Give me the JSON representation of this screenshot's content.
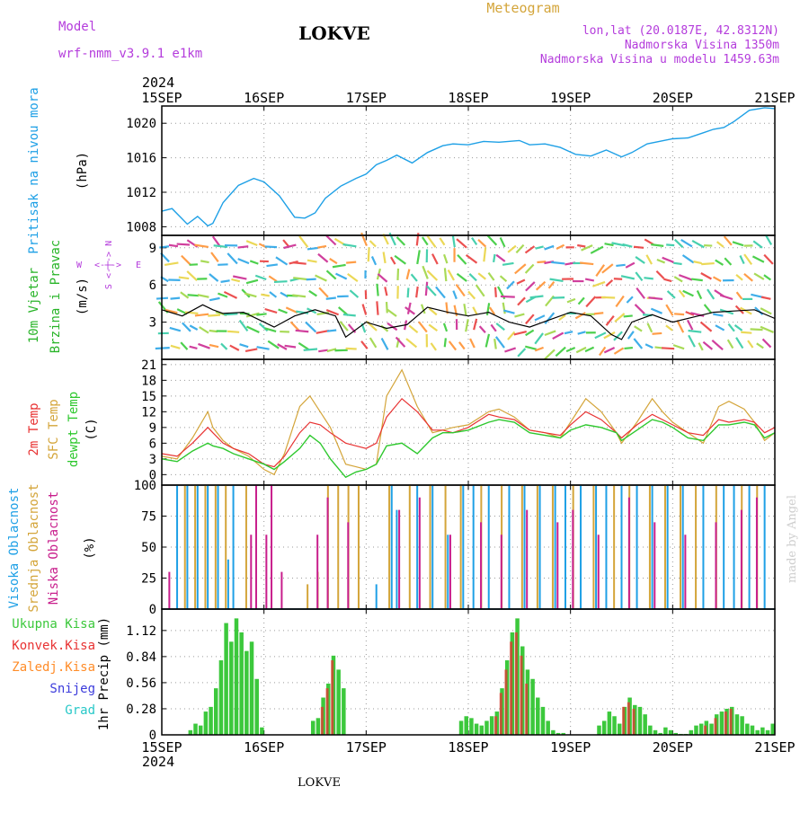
{
  "header": {
    "model_label": "Model",
    "model_name": "wrf-nmm_v3.9.1  e1km",
    "station": "LOKVE",
    "product": "Meteogram",
    "coords": "lon,lat (20.0187E, 42.8312N)",
    "altitude": "Nadmorska Visina 1350m",
    "model_altitude": "Nadmorska Visina u modelu 1459.63m",
    "footer_station": "LOKVE",
    "watermark": "made by Angel",
    "year": "2024"
  },
  "axis": {
    "day_labels": [
      "15SEP",
      "16SEP",
      "17SEP",
      "18SEP",
      "19SEP",
      "20SEP",
      "21SEP"
    ]
  },
  "colors": {
    "pressure": "#1ea0e6",
    "temp2m": "#e83232",
    "sfc_temp": "#d4a53a",
    "dewpoint": "#2ec82e",
    "high_cloud": "#1ea0e6",
    "mid_cloud": "#d4a53a",
    "low_cloud": "#c81e8c",
    "total_precip": "#3cc83c",
    "conv_precip": "#e83232",
    "frozen_precip": "#ff8c28",
    "snow": "#3c3cdc",
    "hail": "#28c8c8",
    "wind_label": "#28b428",
    "wind_compass": "#b43cdc"
  },
  "chart_data": [
    {
      "type": "line",
      "panel": "pressure",
      "ylabel_parts": [
        "Pritisak na nivou mora",
        "(hPa)"
      ],
      "yticks": [
        "1008",
        "1012",
        "1016",
        "1020"
      ],
      "ylim": [
        1007,
        1022
      ],
      "x_unit": "days from 15SEP 00UTC",
      "grid": true,
      "series": [
        {
          "x": [
            0,
            0.1,
            0.25,
            0.35,
            0.45,
            0.5,
            0.6,
            0.75,
            0.9,
            1.0,
            1.15,
            1.3,
            1.4,
            1.5,
            1.6,
            1.75,
            1.9,
            2.0,
            2.1,
            2.2,
            2.3,
            2.45,
            2.6,
            2.75,
            2.85,
            3.0,
            3.15,
            3.3,
            3.5,
            3.6,
            3.75,
            3.9,
            4.05,
            4.2,
            4.35,
            4.5,
            4.6,
            4.75,
            5.0,
            5.15,
            5.3,
            5.4,
            5.5,
            5.6,
            5.75,
            5.9,
            6.0
          ],
          "values": [
            1009.8,
            1010.1,
            1008.3,
            1009.2,
            1008.1,
            1008.4,
            1010.8,
            1012.8,
            1013.6,
            1013.2,
            1011.6,
            1009.1,
            1009.0,
            1009.6,
            1011.3,
            1012.7,
            1013.6,
            1014.1,
            1015.2,
            1015.7,
            1016.3,
            1015.4,
            1016.6,
            1017.4,
            1017.6,
            1017.5,
            1017.9,
            1017.8,
            1018.0,
            1017.5,
            1017.6,
            1017.2,
            1016.4,
            1016.2,
            1016.9,
            1016.1,
            1016.6,
            1017.6,
            1018.2,
            1018.3,
            1018.9,
            1019.3,
            1019.5,
            1020.2,
            1021.5,
            1021.8,
            1021.7
          ]
        }
      ]
    },
    {
      "type": "line",
      "panel": "wind",
      "ylabel_parts": [
        "10m Vjetar",
        "Brzina i Pravac",
        "(m/s)"
      ],
      "compass": [
        "W",
        "<-|->",
        "E",
        "S",
        "N"
      ],
      "yticks": [
        "3",
        "6",
        "9"
      ],
      "ylim": [
        0,
        10
      ],
      "x_unit": "days from 15SEP 00UTC",
      "grid": true,
      "series": [
        {
          "x": [
            0,
            0.2,
            0.4,
            0.5,
            0.6,
            0.8,
            1.0,
            1.1,
            1.3,
            1.5,
            1.7,
            1.8,
            2.0,
            2.2,
            2.4,
            2.6,
            2.8,
            3.0,
            3.2,
            3.4,
            3.6,
            3.8,
            4.0,
            4.2,
            4.4,
            4.5,
            4.6,
            4.8,
            5.0,
            5.2,
            5.4,
            5.6,
            5.8,
            6.0
          ],
          "values": [
            4.0,
            3.5,
            4.4,
            4.0,
            3.7,
            3.8,
            3.0,
            2.6,
            3.5,
            4.0,
            3.5,
            1.8,
            3.0,
            2.5,
            2.8,
            4.2,
            3.8,
            3.5,
            3.8,
            3.0,
            2.6,
            3.2,
            3.8,
            3.5,
            2.0,
            1.6,
            3.0,
            3.6,
            3.0,
            3.4,
            3.8,
            3.9,
            4.0,
            3.3
          ]
        }
      ]
    },
    {
      "type": "line",
      "panel": "temperature",
      "ylabel_parts": [
        "2m Temp",
        "SFC Temp",
        "dewpt Temp",
        "(C)"
      ],
      "yticks": [
        "0",
        "3",
        "6",
        "9",
        "12",
        "15",
        "18",
        "21"
      ],
      "ylim": [
        -2,
        22
      ],
      "x_unit": "days from 15SEP 00UTC",
      "grid": true,
      "series": [
        {
          "name": "2m Temp",
          "x": [
            0,
            0.15,
            0.3,
            0.45,
            0.5,
            0.6,
            0.7,
            0.85,
            1.0,
            1.1,
            1.2,
            1.35,
            1.45,
            1.55,
            1.65,
            1.8,
            1.9,
            2.0,
            2.1,
            2.2,
            2.35,
            2.5,
            2.65,
            2.75,
            2.85,
            3.0,
            3.2,
            3.3,
            3.45,
            3.6,
            3.75,
            3.9,
            4.0,
            4.15,
            4.3,
            4.45,
            4.5,
            4.65,
            4.8,
            4.9,
            5.0,
            5.15,
            5.3,
            5.45,
            5.55,
            5.7,
            5.8,
            5.9,
            6.0
          ],
          "values": [
            4.0,
            3.5,
            6.0,
            9.0,
            8.0,
            6.0,
            5.0,
            4.0,
            2.0,
            1.5,
            3.5,
            8.0,
            10.0,
            9.5,
            8.0,
            6.0,
            5.5,
            5.0,
            6.0,
            11.0,
            14.5,
            12.0,
            8.5,
            8.5,
            8.0,
            9.0,
            11.5,
            11.0,
            10.5,
            8.5,
            8.0,
            7.5,
            9.5,
            12.0,
            10.5,
            8.0,
            7.0,
            9.5,
            11.5,
            10.5,
            9.5,
            8.0,
            7.5,
            10.5,
            10.0,
            10.5,
            10.0,
            8.0,
            9.0
          ]
        },
        {
          "name": "SFC Temp",
          "x": [
            0,
            0.15,
            0.3,
            0.45,
            0.5,
            0.6,
            0.7,
            0.85,
            1.0,
            1.1,
            1.2,
            1.35,
            1.45,
            1.55,
            1.65,
            1.8,
            1.9,
            2.0,
            2.1,
            2.2,
            2.35,
            2.5,
            2.65,
            2.75,
            2.85,
            3.0,
            3.2,
            3.3,
            3.45,
            3.6,
            3.75,
            3.9,
            4.0,
            4.15,
            4.3,
            4.45,
            4.5,
            4.65,
            4.8,
            4.9,
            5.0,
            5.15,
            5.3,
            5.45,
            5.55,
            5.7,
            5.8,
            5.9,
            6.0
          ],
          "values": [
            3.5,
            3.0,
            7.0,
            12.0,
            9.0,
            6.5,
            5.0,
            3.5,
            1.0,
            0.0,
            4.0,
            13.0,
            15.0,
            12.0,
            9.0,
            2.0,
            1.5,
            1.0,
            2.0,
            15.0,
            20.0,
            13.0,
            8.0,
            8.5,
            9.0,
            9.5,
            12.0,
            12.5,
            11.0,
            8.5,
            8.0,
            7.0,
            10.0,
            14.5,
            12.0,
            8.0,
            6.0,
            10.0,
            14.5,
            12.0,
            10.0,
            8.0,
            6.0,
            13.0,
            14.0,
            12.5,
            10.0,
            6.5,
            8.0
          ]
        },
        {
          "name": "dewpt Temp",
          "x": [
            0,
            0.15,
            0.3,
            0.45,
            0.5,
            0.6,
            0.7,
            0.85,
            1.0,
            1.1,
            1.2,
            1.35,
            1.45,
            1.55,
            1.65,
            1.8,
            1.9,
            2.0,
            2.1,
            2.2,
            2.35,
            2.5,
            2.65,
            2.75,
            2.85,
            3.0,
            3.2,
            3.3,
            3.45,
            3.6,
            3.75,
            3.9,
            4.0,
            4.15,
            4.3,
            4.45,
            4.5,
            4.65,
            4.8,
            4.9,
            5.0,
            5.15,
            5.3,
            5.45,
            5.55,
            5.7,
            5.8,
            5.9,
            6.0
          ],
          "values": [
            3.0,
            2.5,
            4.5,
            6.0,
            5.5,
            5.0,
            4.0,
            3.0,
            2.0,
            1.0,
            2.5,
            5.0,
            7.5,
            6.0,
            3.0,
            -0.5,
            0.5,
            1.0,
            2.0,
            5.5,
            6.0,
            4.0,
            7.0,
            8.0,
            8.0,
            8.5,
            10.0,
            10.5,
            10.0,
            8.0,
            7.5,
            7.0,
            8.5,
            9.5,
            9.0,
            8.0,
            6.5,
            8.5,
            10.5,
            10.0,
            9.0,
            7.0,
            6.5,
            9.5,
            9.5,
            10.0,
            9.5,
            7.0,
            8.0
          ]
        }
      ]
    },
    {
      "type": "bar",
      "panel": "cloud",
      "ylabel_parts": [
        "Visoka Oblacnost",
        "Srednja Oblacnost",
        "Niska Oblacnost",
        "(%)"
      ],
      "yticks": [
        "0",
        "25",
        "50",
        "75",
        "100"
      ],
      "ylim": [
        0,
        100
      ],
      "x_unit": "days from 15SEP 00UTC",
      "grid": true,
      "series": [
        {
          "name": "Visoka Oblacnost",
          "x": [
            0.15,
            0.25,
            0.35,
            0.45,
            0.55,
            0.65,
            0.7,
            2.1,
            2.25,
            2.3,
            2.5,
            2.65,
            2.8,
            2.95,
            3.05,
            3.2,
            3.4,
            3.55,
            3.7,
            3.85,
            3.95,
            4.1,
            4.25,
            4.35,
            4.5,
            4.65,
            4.8,
            4.95,
            5.1,
            5.3,
            5.5,
            5.6,
            5.75,
            5.9
          ],
          "values": [
            100,
            100,
            100,
            100,
            100,
            40,
            100,
            20,
            100,
            80,
            100,
            100,
            60,
            100,
            100,
            100,
            100,
            100,
            100,
            100,
            100,
            100,
            100,
            100,
            100,
            100,
            100,
            100,
            100,
            100,
            100,
            100,
            100,
            100
          ]
        },
        {
          "name": "Srednja Oblacnost",
          "x": [
            0.2,
            0.3,
            0.4,
            0.5,
            0.6,
            0.8,
            1.4,
            1.5,
            1.6,
            1.7,
            1.8,
            1.9,
            2.2,
            2.4,
            2.6,
            2.75,
            2.9,
            3.1,
            3.3,
            3.5,
            3.65,
            3.8,
            4.0,
            4.2,
            4.4,
            4.55,
            4.75,
            4.9,
            5.05,
            5.2,
            5.4,
            5.65,
            5.8
          ],
          "values": [
            100,
            100,
            100,
            100,
            100,
            100,
            20,
            30,
            100,
            100,
            100,
            100,
            100,
            100,
            100,
            100,
            100,
            100,
            100,
            100,
            100,
            100,
            100,
            100,
            100,
            100,
            100,
            100,
            100,
            100,
            100,
            100,
            100
          ]
        },
        {
          "name": "Niska Oblacnost",
          "x": [
            0.1,
            0.9,
            0.95,
            1.05,
            1.1,
            1.2,
            1.55,
            1.65,
            1.85,
            2.35,
            2.55,
            2.85,
            3.15,
            3.35,
            3.6,
            3.9,
            4.05,
            4.3,
            4.6,
            4.85,
            5.15,
            5.45,
            5.7,
            5.85
          ],
          "values": [
            30,
            60,
            100,
            60,
            100,
            30,
            60,
            90,
            70,
            80,
            90,
            60,
            70,
            60,
            80,
            70,
            80,
            60,
            90,
            70,
            60,
            70,
            80,
            90
          ]
        }
      ]
    },
    {
      "type": "bar",
      "panel": "precipitation",
      "ylabel_parts": [
        "1hr Precip (mm)"
      ],
      "legend": [
        "Ukupna Kisa",
        "Konvek.Kisa",
        "Zaledj.Kisa",
        "Snijeg",
        "Grad"
      ],
      "yticks": [
        "0",
        "0.28",
        "0.56",
        "0.84",
        "1.12"
      ],
      "ylim": [
        0,
        1.35
      ],
      "x_unit": "days from 15SEP 00UTC",
      "grid": true,
      "series": [
        {
          "name": "Ukupna Kisa",
          "x": [
            0.28,
            0.33,
            0.38,
            0.43,
            0.48,
            0.53,
            0.58,
            0.63,
            0.68,
            0.73,
            0.78,
            0.83,
            0.88,
            0.93,
            0.98,
            1.48,
            1.53,
            1.58,
            1.63,
            1.68,
            1.73,
            1.78,
            2.93,
            2.98,
            3.03,
            3.08,
            3.13,
            3.18,
            3.23,
            3.28,
            3.33,
            3.38,
            3.43,
            3.48,
            3.53,
            3.58,
            3.63,
            3.68,
            3.73,
            3.78,
            3.83,
            3.88,
            3.93,
            4.28,
            4.33,
            4.38,
            4.43,
            4.48,
            4.53,
            4.58,
            4.63,
            4.68,
            4.73,
            4.78,
            4.83,
            4.88,
            4.93,
            4.98,
            5.03,
            5.08,
            5.13,
            5.18,
            5.23,
            5.28,
            5.33,
            5.38,
            5.43,
            5.48,
            5.53,
            5.58,
            5.63,
            5.68,
            5.73,
            5.78,
            5.83,
            5.88,
            5.93,
            5.98
          ],
          "values": [
            0.05,
            0.12,
            0.1,
            0.25,
            0.3,
            0.5,
            0.8,
            1.2,
            1.0,
            1.25,
            1.1,
            0.9,
            1.0,
            0.6,
            0.08,
            0.15,
            0.18,
            0.4,
            0.55,
            0.85,
            0.7,
            0.5,
            0.15,
            0.2,
            0.18,
            0.12,
            0.1,
            0.15,
            0.2,
            0.25,
            0.5,
            0.8,
            1.1,
            1.25,
            0.95,
            0.7,
            0.6,
            0.4,
            0.3,
            0.15,
            0.05,
            0.02,
            0.02,
            0.1,
            0.15,
            0.25,
            0.2,
            0.12,
            0.3,
            0.4,
            0.32,
            0.3,
            0.22,
            0.1,
            0.05,
            0.02,
            0.08,
            0.05,
            0.02,
            0.01,
            0.01,
            0.05,
            0.1,
            0.12,
            0.15,
            0.12,
            0.22,
            0.25,
            0.28,
            0.3,
            0.22,
            0.2,
            0.12,
            0.1,
            0.05,
            0.08,
            0.05,
            0.12
          ]
        },
        {
          "name": "Konvek.Kisa",
          "x": [
            1.58,
            1.63,
            1.68,
            3.28,
            3.33,
            3.38,
            3.43,
            3.48,
            3.53,
            3.58,
            4.53,
            4.58,
            4.63,
            5.33,
            5.43,
            5.53,
            5.58
          ],
          "values": [
            0.3,
            0.5,
            0.8,
            0.2,
            0.45,
            0.7,
            1.0,
            1.1,
            0.85,
            0.55,
            0.3,
            0.35,
            0.28,
            0.1,
            0.18,
            0.25,
            0.28
          ]
        }
      ]
    }
  ]
}
